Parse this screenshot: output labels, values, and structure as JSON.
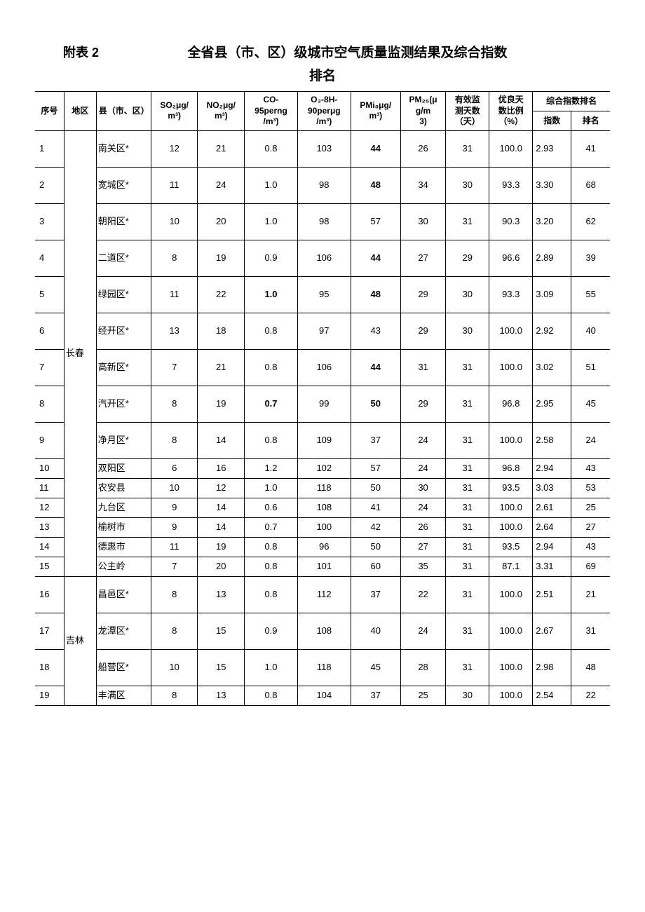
{
  "title_label": "附表 2",
  "title_main": "全省县（市、区）级城市空气质量监测结果及综合指数",
  "title_sub": "排名",
  "headers": {
    "seq": "序号",
    "region": "地区",
    "county": "县（市、区）",
    "so2_a": "SO₂μg/",
    "so2_b": "m³)",
    "no2_a": "NO₂μg/",
    "no2_b": "m³)",
    "co_a": "CO-",
    "co_b": "95perng",
    "co_c": "/m³)",
    "o3_a": "O₃-8H-",
    "o3_b": "90perμg",
    "o3_c": "/m³)",
    "pm10_a": "PMi₀μg/",
    "pm10_b": "m³)",
    "pm25_a": "PM₂₅(μ",
    "pm25_b": "g/m",
    "pm25_c": "3)",
    "days_a": "有效监",
    "days_b": "测天数",
    "days_c": "（天）",
    "good_a": "优良天",
    "good_b": "数比例",
    "good_c": "（%）",
    "comp": "综合指数排名",
    "comp_idx": "指数",
    "comp_rank": "排名"
  },
  "regions": [
    {
      "name": "长春",
      "start": 1,
      "span": 15
    },
    {
      "name": "吉林",
      "start": 16,
      "span": 4
    }
  ],
  "rows": [
    {
      "seq": "1",
      "name": "南关区*",
      "so2": "12",
      "no2": "21",
      "co": "0.8",
      "o3": "103",
      "pm10": "44",
      "pm10_bold": true,
      "pm25": "26",
      "days": "31",
      "good": "100.0",
      "idx": "2.93",
      "rank": "41",
      "tall": true
    },
    {
      "seq": "2",
      "name": "宽城区*",
      "so2": "11",
      "no2": "24",
      "co": "1.0",
      "o3": "98",
      "pm10": "48",
      "pm10_bold": true,
      "pm25": "34",
      "days": "30",
      "good": "93.3",
      "idx": "3.30",
      "rank": "68",
      "tall": true
    },
    {
      "seq": "3",
      "name": "朝阳区*",
      "so2": "10",
      "no2": "20",
      "co": "1.0",
      "o3": "98",
      "pm10": "57",
      "pm25": "30",
      "days": "31",
      "good": "90.3",
      "idx": "3.20",
      "rank": "62",
      "tall": true
    },
    {
      "seq": "4",
      "name": "二道区*",
      "so2": "8",
      "no2": "19",
      "co": "0.9",
      "o3": "106",
      "pm10": "44",
      "pm10_bold": true,
      "pm25": "27",
      "days": "29",
      "good": "96.6",
      "idx": "2.89",
      "rank": "39",
      "tall": true
    },
    {
      "seq": "5",
      "name": "绿园区*",
      "so2": "11",
      "no2": "22",
      "co": "1.0",
      "co_bold": true,
      "o3": "95",
      "pm10": "48",
      "pm10_bold": true,
      "pm25": "29",
      "days": "30",
      "good": "93.3",
      "idx": "3.09",
      "rank": "55",
      "tall": true
    },
    {
      "seq": "6",
      "name": "经开区*",
      "so2": "13",
      "no2": "18",
      "co": "0.8",
      "o3": "97",
      "pm10": "43",
      "pm25": "29",
      "days": "30",
      "good": "100.0",
      "idx": "2.92",
      "rank": "40",
      "tall": true
    },
    {
      "seq": "7",
      "name": "高新区*",
      "so2": "7",
      "no2": "21",
      "co": "0.8",
      "o3": "106",
      "pm10": "44",
      "pm10_bold": true,
      "pm25": "31",
      "days": "31",
      "good": "100.0",
      "idx": "3.02",
      "rank": "51",
      "tall": true
    },
    {
      "seq": "8",
      "name": "汽开区*",
      "so2": "8",
      "no2": "19",
      "co": "0.7",
      "co_bold": true,
      "o3": "99",
      "pm10": "50",
      "pm10_bold": true,
      "pm25": "29",
      "days": "31",
      "good": "96.8",
      "idx": "2.95",
      "rank": "45",
      "tall": true
    },
    {
      "seq": "9",
      "name": "净月区*",
      "so2": "8",
      "no2": "14",
      "co": "0.8",
      "o3": "109",
      "pm10": "37",
      "pm25": "24",
      "days": "31",
      "good": "100.0",
      "idx": "2.58",
      "rank": "24",
      "tall": true
    },
    {
      "seq": "10",
      "name": "双阳区",
      "so2": "6",
      "no2": "16",
      "co": "1.2",
      "o3": "102",
      "pm10": "57",
      "pm25": "24",
      "days": "31",
      "good": "96.8",
      "idx": "2.94",
      "rank": "43"
    },
    {
      "seq": "11",
      "name": "农安县",
      "so2": "10",
      "no2": "12",
      "co": "1.0",
      "o3": "118",
      "pm10": "50",
      "pm25": "30",
      "days": "31",
      "good": "93.5",
      "idx": "3.03",
      "rank": "53"
    },
    {
      "seq": "12",
      "name": "九台区",
      "so2": "9",
      "no2": "14",
      "co": "0.6",
      "o3": "108",
      "pm10": "41",
      "pm25": "24",
      "days": "31",
      "good": "100.0",
      "idx": "2.61",
      "rank": "25"
    },
    {
      "seq": "13",
      "name": "榆树市",
      "so2": "9",
      "no2": "14",
      "co": "0.7",
      "o3": "100",
      "pm10": "42",
      "pm25": "26",
      "days": "31",
      "good": "100.0",
      "idx": "2.64",
      "rank": "27"
    },
    {
      "seq": "14",
      "name": "德惠市",
      "so2": "11",
      "no2": "19",
      "co": "0.8",
      "o3": "96",
      "pm10": "50",
      "pm25": "27",
      "days": "31",
      "good": "93.5",
      "idx": "2.94",
      "rank": "43"
    },
    {
      "seq": "15",
      "name": "公主岭",
      "so2": "7",
      "no2": "20",
      "co": "0.8",
      "o3": "101",
      "pm10": "60",
      "pm25": "35",
      "days": "31",
      "good": "87.1",
      "idx": "3.31",
      "rank": "69"
    },
    {
      "seq": "16",
      "name": "昌邑区*",
      "so2": "8",
      "no2": "13",
      "co": "0.8",
      "o3": "112",
      "pm10": "37",
      "pm25": "22",
      "days": "31",
      "good": "100.0",
      "idx": "2.51",
      "rank": "21",
      "tall": true
    },
    {
      "seq": "17",
      "name": "龙潭区*",
      "so2": "8",
      "no2": "15",
      "co": "0.9",
      "o3": "108",
      "pm10": "40",
      "pm25": "24",
      "days": "31",
      "good": "100.0",
      "idx": "2.67",
      "rank": "31",
      "tall": true
    },
    {
      "seq": "18",
      "name": "船营区*",
      "so2": "10",
      "no2": "15",
      "co": "1.0",
      "o3": "118",
      "pm10": "45",
      "pm25": "28",
      "days": "31",
      "good": "100.0",
      "idx": "2.98",
      "rank": "48",
      "tall": true
    },
    {
      "seq": "19",
      "name": "丰满区",
      "so2": "8",
      "no2": "13",
      "co": "0.8",
      "o3": "104",
      "pm10": "37",
      "pm25": "25",
      "days": "30",
      "good": "100.0",
      "idx": "2.54",
      "rank": "22"
    }
  ],
  "colors": {
    "text": "#000000",
    "border": "#000000",
    "background": "#ffffff"
  },
  "fonts": {
    "title_size_pt": 14,
    "header_size_pt": 9,
    "body_size_pt": 10
  }
}
